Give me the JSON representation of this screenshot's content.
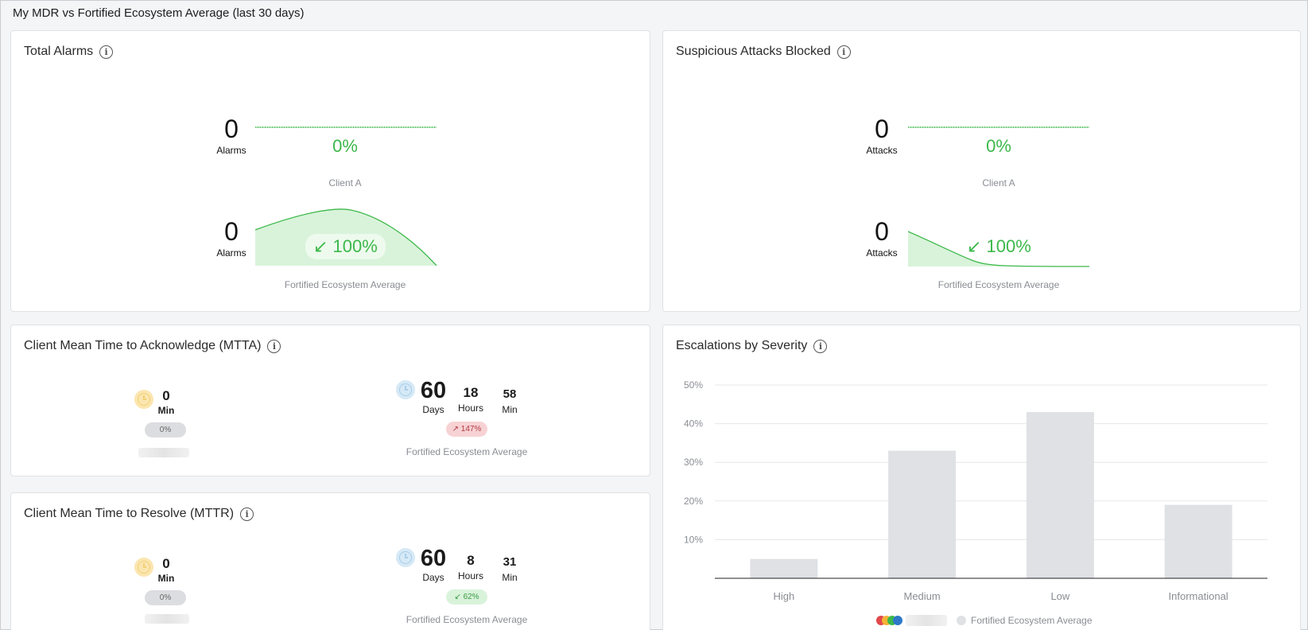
{
  "page": {
    "title": "My MDR vs Fortified Ecosystem Average (last 30 days)"
  },
  "total_alarms": {
    "title": "Total Alarms",
    "client_value": "0",
    "client_unit": "Alarms",
    "client_pct": "0%",
    "client_caption": "Client A",
    "eco_value": "0",
    "eco_unit": "Alarms",
    "eco_pct": "↙ 100%",
    "eco_caption": "Fortified Ecosystem Average"
  },
  "attacks_blocked": {
    "title": "Suspicious Attacks Blocked",
    "client_value": "0",
    "client_unit": "Attacks",
    "client_pct": "0%",
    "client_caption": "Client A",
    "eco_value": "0",
    "eco_unit": "Attacks",
    "eco_pct": "↙ 100%",
    "eco_caption": "Fortified Ecosystem Average"
  },
  "mtta": {
    "title": "Client Mean Time to Acknowledge (MTTA)",
    "client_min": "0",
    "client_min_label": "Min",
    "client_badge": "0%",
    "eco_days": "60",
    "eco_days_label": "Days",
    "eco_hours": "18",
    "eco_hours_label": "Hours",
    "eco_min": "58",
    "eco_min_label": "Min",
    "eco_badge": "↗ 147%",
    "eco_caption": "Fortified Ecosystem Average"
  },
  "mttr": {
    "title": "Client Mean Time to Resolve (MTTR)",
    "client_min": "0",
    "client_min_label": "Min",
    "client_badge": "0%",
    "eco_days": "60",
    "eco_days_label": "Days",
    "eco_hours": "8",
    "eco_hours_label": "Hours",
    "eco_min": "31",
    "eco_min_label": "Min",
    "eco_badge": "↙ 62%",
    "eco_caption": "Fortified Ecosystem Average"
  },
  "escalations": {
    "title": "Escalations by Severity",
    "legend_label": "Fortified Ecosystem Average"
  },
  "colors": {
    "green": "#3cb84a",
    "bar_grey": "#dfe1e5",
    "red_badge": "#f7d2d4"
  },
  "chart_data": {
    "type": "bar",
    "categories": [
      "High",
      "Medium",
      "Low",
      "Informational"
    ],
    "series": [
      {
        "name": "Fortified Ecosystem Average",
        "values": [
          5,
          33,
          43,
          19
        ]
      }
    ],
    "yticks": [
      "10%",
      "20%",
      "30%",
      "40%",
      "50%"
    ],
    "ylim": [
      0,
      50
    ],
    "grid": true,
    "legend_position": "bottom"
  }
}
